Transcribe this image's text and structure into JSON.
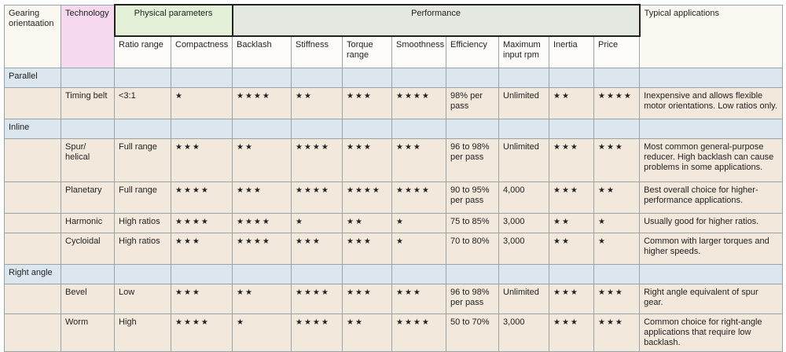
{
  "header_row1": [
    "Gearing orientaation",
    "Technology",
    "Physical parameters",
    "Performance",
    "Typical applications"
  ],
  "header_row2": [
    "Ratio range",
    "Compactness",
    "Backlash",
    "Stiffness",
    "Torque range",
    "Smoothness",
    "Efficiency",
    "Maximum input rpm",
    "Inertia",
    "Price"
  ],
  "sections": [
    {
      "title": "Parallel",
      "rows": [
        [
          "Timing belt",
          "<3:1",
          "★",
          "★★★★",
          "★★",
          "★★★",
          "★★★★",
          "98% per pass",
          "Unlimited",
          "★★",
          "★★★★",
          "Inexpensive and allows flexible motor orientations. Low ratios only."
        ]
      ]
    },
    {
      "title": "Inline",
      "rows": [
        [
          "Spur/ helical",
          "Full range",
          "★★★",
          "★★",
          "★★★★",
          "★★★",
          "★★★",
          "96 to 98% per pass",
          "Unlimited",
          "★★★",
          "★★★",
          "Most common general-purpose reducer. High backlash can cause problems in some applications."
        ],
        [
          "Planetary",
          "Full range",
          "★★★★",
          "★★★",
          "★★★★",
          "★★★★",
          "★★★★",
          "90 to 95% per pass",
          "4,000",
          "★★★",
          "★★",
          "Best overall choice for higher-performance applications."
        ],
        [
          "Harmonic",
          "High ratios",
          "★★★★",
          "★★★★",
          "★",
          "★★",
          "★",
          "75 to 85%",
          "3,000",
          "★★",
          "★",
          "Usually good for higher ratios."
        ],
        [
          "Cycloidal",
          "High ratios",
          "★★★",
          "★★★★",
          "★★★",
          "★★★",
          "★",
          "70 to 80%",
          "3,000",
          "★★",
          "★",
          "Common with larger torques and higher speeds."
        ]
      ]
    },
    {
      "title": "Right angle",
      "rows": [
        [
          "Bevel",
          "Low",
          "★★★",
          "★★",
          "★★★★",
          "★★★",
          "★★★",
          "96 to 98% per pass",
          "Unlimited",
          "★★★",
          "★★★",
          "Right angle equivalent of spur gear."
        ],
        [
          "Worm",
          "High",
          "★★★★",
          "★",
          "★★★★",
          "★★",
          "★★★★",
          "50 to 70%",
          "3,000",
          "★★★",
          "★★★",
          "Common choice for right-angle applications that require low backlash."
        ]
      ]
    }
  ]
}
